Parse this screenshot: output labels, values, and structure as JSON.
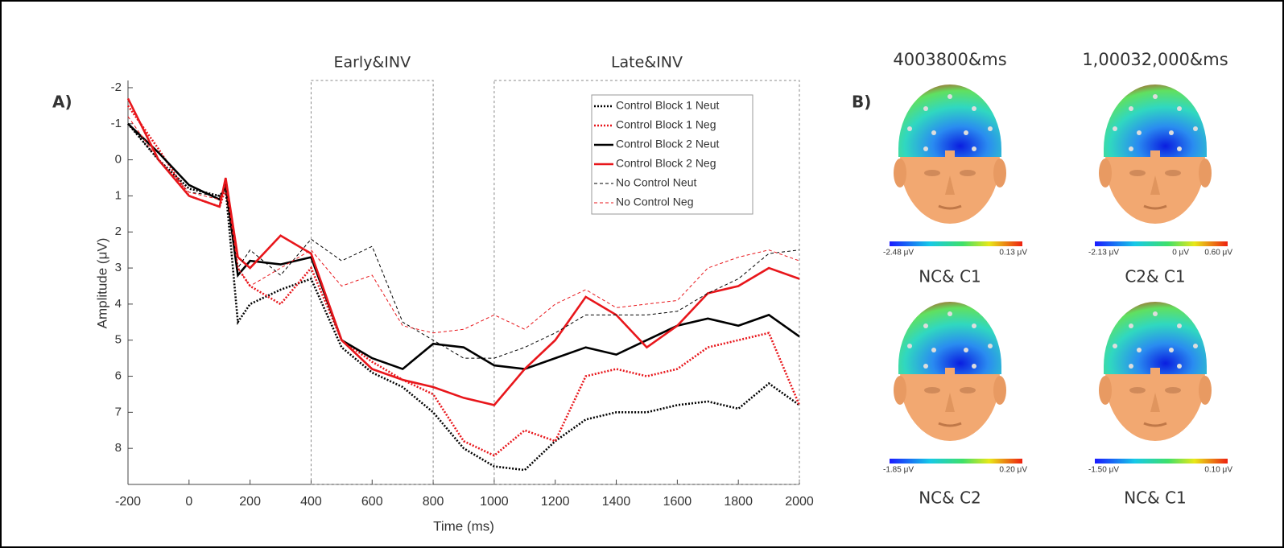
{
  "chart_data": {
    "type": "line",
    "y_label": "Amplitude (μV)",
    "x_label": "Time (ms)",
    "xlim": [
      -200,
      2000
    ],
    "xticks": [
      -200,
      0,
      200,
      400,
      600,
      800,
      1000,
      1200,
      1400,
      1600,
      1800,
      2000
    ],
    "ylim": [
      -2.2,
      9.0
    ],
    "yticks": [
      -2,
      -1,
      0,
      1,
      2,
      3,
      4,
      5,
      6,
      7,
      8
    ],
    "y_inverted": true,
    "legend": "top-right",
    "annotations": [
      {
        "text": "Early&INV",
        "x": [
          400,
          800
        ]
      },
      {
        "text": "Late&INV",
        "x": [
          1000,
          2000
        ]
      }
    ],
    "x": [
      -200,
      -100,
      0,
      100,
      120,
      160,
      200,
      300,
      400,
      500,
      600,
      700,
      800,
      900,
      1000,
      1100,
      1200,
      1300,
      1400,
      1500,
      1600,
      1700,
      1800,
      1900,
      2000
    ],
    "series": [
      {
        "name": "Control Block 1 Neut",
        "color": "#000000",
        "style": "dotted",
        "values": [
          -1.0,
          0.0,
          0.8,
          1.0,
          0.8,
          4.5,
          4.0,
          3.6,
          3.3,
          5.2,
          5.9,
          6.3,
          7.0,
          8.0,
          8.5,
          8.6,
          7.8,
          7.2,
          7.0,
          7.0,
          6.8,
          6.7,
          6.9,
          6.2,
          6.8
        ]
      },
      {
        "name": "Control Block 1 Neg",
        "color": "#e8161b",
        "style": "dotted",
        "values": [
          -1.5,
          -0.3,
          1.0,
          1.3,
          0.8,
          3.0,
          3.5,
          4.0,
          3.0,
          5.0,
          5.6,
          6.1,
          6.5,
          7.8,
          8.2,
          7.5,
          7.8,
          6.0,
          5.8,
          6.0,
          5.8,
          5.2,
          5.0,
          4.8,
          6.8
        ]
      },
      {
        "name": "Control Block 2 Neut",
        "color": "#000000",
        "style": "solid",
        "values": [
          -1.0,
          -0.2,
          0.7,
          1.1,
          0.7,
          3.2,
          2.8,
          2.9,
          2.7,
          5.0,
          5.5,
          5.8,
          5.1,
          5.2,
          5.7,
          5.8,
          5.5,
          5.2,
          5.4,
          5.0,
          4.6,
          4.4,
          4.6,
          4.3,
          4.9
        ]
      },
      {
        "name": "Control Block 2 Neg",
        "color": "#e8161b",
        "style": "solid",
        "values": [
          -1.7,
          0.0,
          1.0,
          1.3,
          0.5,
          2.7,
          3.0,
          2.1,
          2.6,
          5.0,
          5.8,
          6.1,
          6.3,
          6.6,
          6.8,
          5.8,
          5.0,
          3.8,
          4.3,
          5.2,
          4.6,
          3.7,
          3.5,
          3.0,
          3.3
        ]
      },
      {
        "name": "No Control Neut",
        "color": "#000000",
        "style": "dashed",
        "values": [
          -1.0,
          0.0,
          0.9,
          1.0,
          0.8,
          3.0,
          2.5,
          3.2,
          2.2,
          2.8,
          2.4,
          4.5,
          5.0,
          5.5,
          5.5,
          5.2,
          4.8,
          4.3,
          4.3,
          4.3,
          4.2,
          3.7,
          3.3,
          2.6,
          2.5
        ]
      },
      {
        "name": "No Control Neg",
        "color": "#e8161b",
        "style": "dashed",
        "values": [
          -1.2,
          0.0,
          0.9,
          1.1,
          0.7,
          3.0,
          3.5,
          3.0,
          2.5,
          3.5,
          3.2,
          4.6,
          4.8,
          4.7,
          4.3,
          4.7,
          4.0,
          3.6,
          4.1,
          4.0,
          3.9,
          3.0,
          2.7,
          2.5,
          2.8
        ]
      }
    ]
  },
  "panel_labels": [
    "A)",
    "B)"
  ],
  "topomaps": {
    "column_titles": [
      "4003800&ms",
      "1,00032,000&ms"
    ],
    "maps": [
      {
        "scale_labels": [
          "-2.48 μV",
          "0.13 μV"
        ],
        "caption": "NC& C1"
      },
      {
        "scale_labels": [
          "-2.13 μV",
          "0 μV",
          "0.60 μV"
        ],
        "caption": "C2& C1"
      },
      {
        "scale_labels": [
          "-1.85 μV",
          "0.20 μV"
        ],
        "caption": "NC& C2"
      },
      {
        "scale_labels": [
          "-1.50 μV",
          "0.10 μV"
        ],
        "caption": "NC& C1"
      }
    ]
  }
}
